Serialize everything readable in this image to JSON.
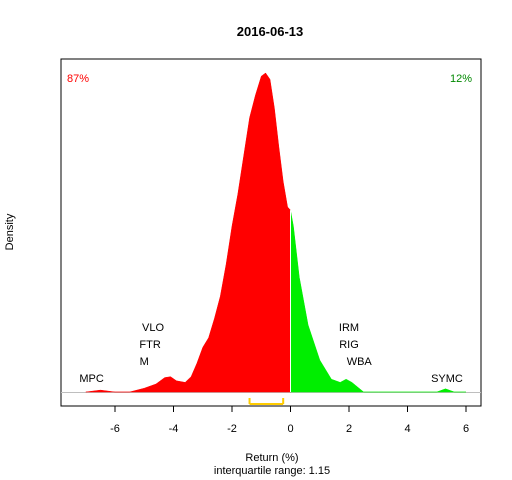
{
  "chart_data": {
    "type": "area",
    "title": "2016-06-13",
    "xlabel": "Return (%)",
    "subtitle": "interquartile range: 1.15",
    "ylabel": "Density",
    "xlim": [
      -7.8,
      6.0
    ],
    "x_ticks": [
      -6,
      -4,
      -2,
      0,
      2,
      4,
      6
    ],
    "x_tick_labels": [
      "-6",
      "-4",
      "-2",
      "0",
      "2",
      "4",
      "6"
    ],
    "grid": false,
    "colors": {
      "negative": "#ff0000",
      "positive": "#00ee00",
      "iqr": "#ffcc00",
      "baseline": "#bebebe"
    },
    "share_labels": [
      {
        "text": "87%",
        "side": "left",
        "color": "#ff0000"
      },
      {
        "text": "12%",
        "side": "right",
        "color": "#008800"
      }
    ],
    "density_curve": {
      "x": [
        -7.0,
        -6.5,
        -6.0,
        -5.5,
        -5.0,
        -4.6,
        -4.3,
        -4.1,
        -3.9,
        -3.6,
        -3.4,
        -3.2,
        -3.0,
        -2.8,
        -2.6,
        -2.4,
        -2.2,
        -2.0,
        -1.8,
        -1.6,
        -1.4,
        -1.2,
        -1.0,
        -0.85,
        -0.7,
        -0.55,
        -0.4,
        -0.25,
        -0.1,
        0.0,
        0.0,
        0.1,
        0.3,
        0.6,
        1.0,
        1.4,
        1.7,
        1.9,
        2.1,
        2.5,
        3.0,
        4.0,
        5.0,
        5.3,
        5.6,
        6.0
      ],
      "y": [
        0.0,
        0.006,
        0.0,
        0.0,
        0.012,
        0.025,
        0.045,
        0.048,
        0.035,
        0.03,
        0.048,
        0.09,
        0.14,
        0.17,
        0.23,
        0.3,
        0.4,
        0.52,
        0.62,
        0.74,
        0.86,
        0.93,
        0.99,
        1.0,
        0.98,
        0.89,
        0.77,
        0.66,
        0.58,
        0.57,
        0.57,
        0.52,
        0.36,
        0.21,
        0.1,
        0.04,
        0.03,
        0.04,
        0.03,
        0.0,
        0.0,
        0.0,
        0.0,
        0.01,
        0.0,
        0.0
      ],
      "split_at": 0.0
    },
    "iqr_range": [
      -1.4,
      -0.25
    ],
    "annotations": [
      {
        "text": "MPC",
        "x": -6.8,
        "level": 1
      },
      {
        "text": "VLO",
        "x": -4.7,
        "level": 4
      },
      {
        "text": "FTR",
        "x": -4.8,
        "level": 3
      },
      {
        "text": "M",
        "x": -5.0,
        "level": 2
      },
      {
        "text": "IRM",
        "x": 2.0,
        "level": 4
      },
      {
        "text": "RIG",
        "x": 2.0,
        "level": 3
      },
      {
        "text": "WBA",
        "x": 2.35,
        "level": 2
      },
      {
        "text": "SYMC",
        "x": 5.35,
        "level": 1
      }
    ]
  }
}
